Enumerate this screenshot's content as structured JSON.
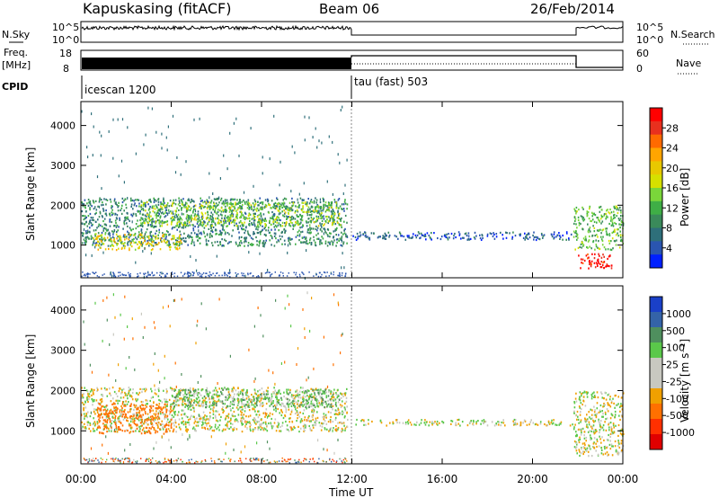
{
  "header": {
    "station": "Kapuskasing (fitACF)",
    "beam": "Beam 06",
    "date": "26/Feb/2014"
  },
  "panels": {
    "nsky": {
      "left_label": "N.Sky",
      "left_ticks": [
        "10^5",
        "10^0"
      ],
      "right_label": "N.Search",
      "right_ticks": [
        "10^5",
        "10^0"
      ]
    },
    "freq": {
      "left_label_1": "Freq.",
      "left_label_2": "[MHz]",
      "left_ticks": [
        "18",
        "8"
      ],
      "right_label": "Nave",
      "right_ticks": [
        "60",
        "0"
      ]
    },
    "cpid": {
      "label": "CPID",
      "segments": [
        {
          "name": "icescan 1200",
          "start_h": 0,
          "end_h": 12
        },
        {
          "name": "tau (fast) 503",
          "start_h": 12,
          "end_h": 24
        }
      ]
    }
  },
  "axes": {
    "ylabel": "Slant Range [km]",
    "yticks": [
      "4000",
      "3000",
      "2000",
      "1000"
    ],
    "xticks": [
      "00:00",
      "04:00",
      "08:00",
      "12:00",
      "16:00",
      "20:00",
      "00:00"
    ],
    "xlabel": "Time UT"
  },
  "colorbars": {
    "power": {
      "label": "Power [dB]",
      "ticks": [
        "28",
        "24",
        "20",
        "16",
        "12",
        "8",
        "4"
      ],
      "colors": [
        "#ff0000",
        "#e8301e",
        "#ff6a00",
        "#ffa500",
        "#e8c800",
        "#d6e000",
        "#7ad63a",
        "#3fae46",
        "#3a8a5a",
        "#2e6f7a",
        "#2a55b0",
        "#0020ff"
      ]
    },
    "velocity": {
      "label": "Velocity [m s⁻¹]",
      "ticks": [
        "1000",
        "500",
        "100",
        "25",
        "-25",
        "-100",
        "-500",
        "-1000"
      ],
      "colors": [
        "#1a40c8",
        "#3463a8",
        "#4f8f5e",
        "#5ac84a",
        "#c8c8c0",
        "#c8c8c0",
        "#f0a000",
        "#ff7000",
        "#ff3000",
        "#e00000"
      ]
    }
  },
  "chart_data": [
    {
      "type": "heatmap",
      "title": "Power [dB]",
      "xlabel": "Time UT",
      "ylabel": "Slant Range [km]",
      "x_range_hours": [
        0,
        24
      ],
      "y_range_km": [
        180,
        4600
      ],
      "colorbar_range_db": [
        0,
        30
      ],
      "bands": [
        {
          "t0": 0.0,
          "t1": 11.8,
          "r0": 1000,
          "r1": 2200,
          "value": 8
        },
        {
          "t0": 0.5,
          "t1": 4.5,
          "r0": 900,
          "r1": 1300,
          "value": 18
        },
        {
          "t0": 2.5,
          "t1": 11.5,
          "r0": 1500,
          "r1": 2100,
          "value": 14
        },
        {
          "t0": 12.0,
          "t1": 21.8,
          "r0": 1150,
          "r1": 1350,
          "value": 5
        },
        {
          "t0": 21.8,
          "t1": 24.0,
          "r0": 900,
          "r1": 2000,
          "value": 12
        },
        {
          "t0": 22.0,
          "t1": 23.5,
          "r0": 400,
          "r1": 800,
          "value": 28
        }
      ]
    },
    {
      "type": "heatmap",
      "title": "Velocity [m s-1]",
      "xlabel": "Time UT",
      "ylabel": "Slant Range [km]",
      "x_range_hours": [
        0,
        24
      ],
      "y_range_km": [
        180,
        4600
      ],
      "colorbar_range_ms": [
        -1000,
        1000
      ],
      "bands": [
        {
          "t0": 0.0,
          "t1": 11.8,
          "r0": 1000,
          "r1": 2100,
          "value": 0
        },
        {
          "t0": 0.7,
          "t1": 4.0,
          "r0": 950,
          "r1": 1700,
          "value": -300
        },
        {
          "t0": 4.0,
          "t1": 11.5,
          "r0": 1600,
          "r1": 2050,
          "value": 80
        },
        {
          "t0": 12.0,
          "t1": 21.8,
          "r0": 1150,
          "r1": 1300,
          "value": 0
        },
        {
          "t0": 21.8,
          "t1": 24.0,
          "r0": 400,
          "r1": 2000,
          "value": 0
        }
      ]
    }
  ]
}
